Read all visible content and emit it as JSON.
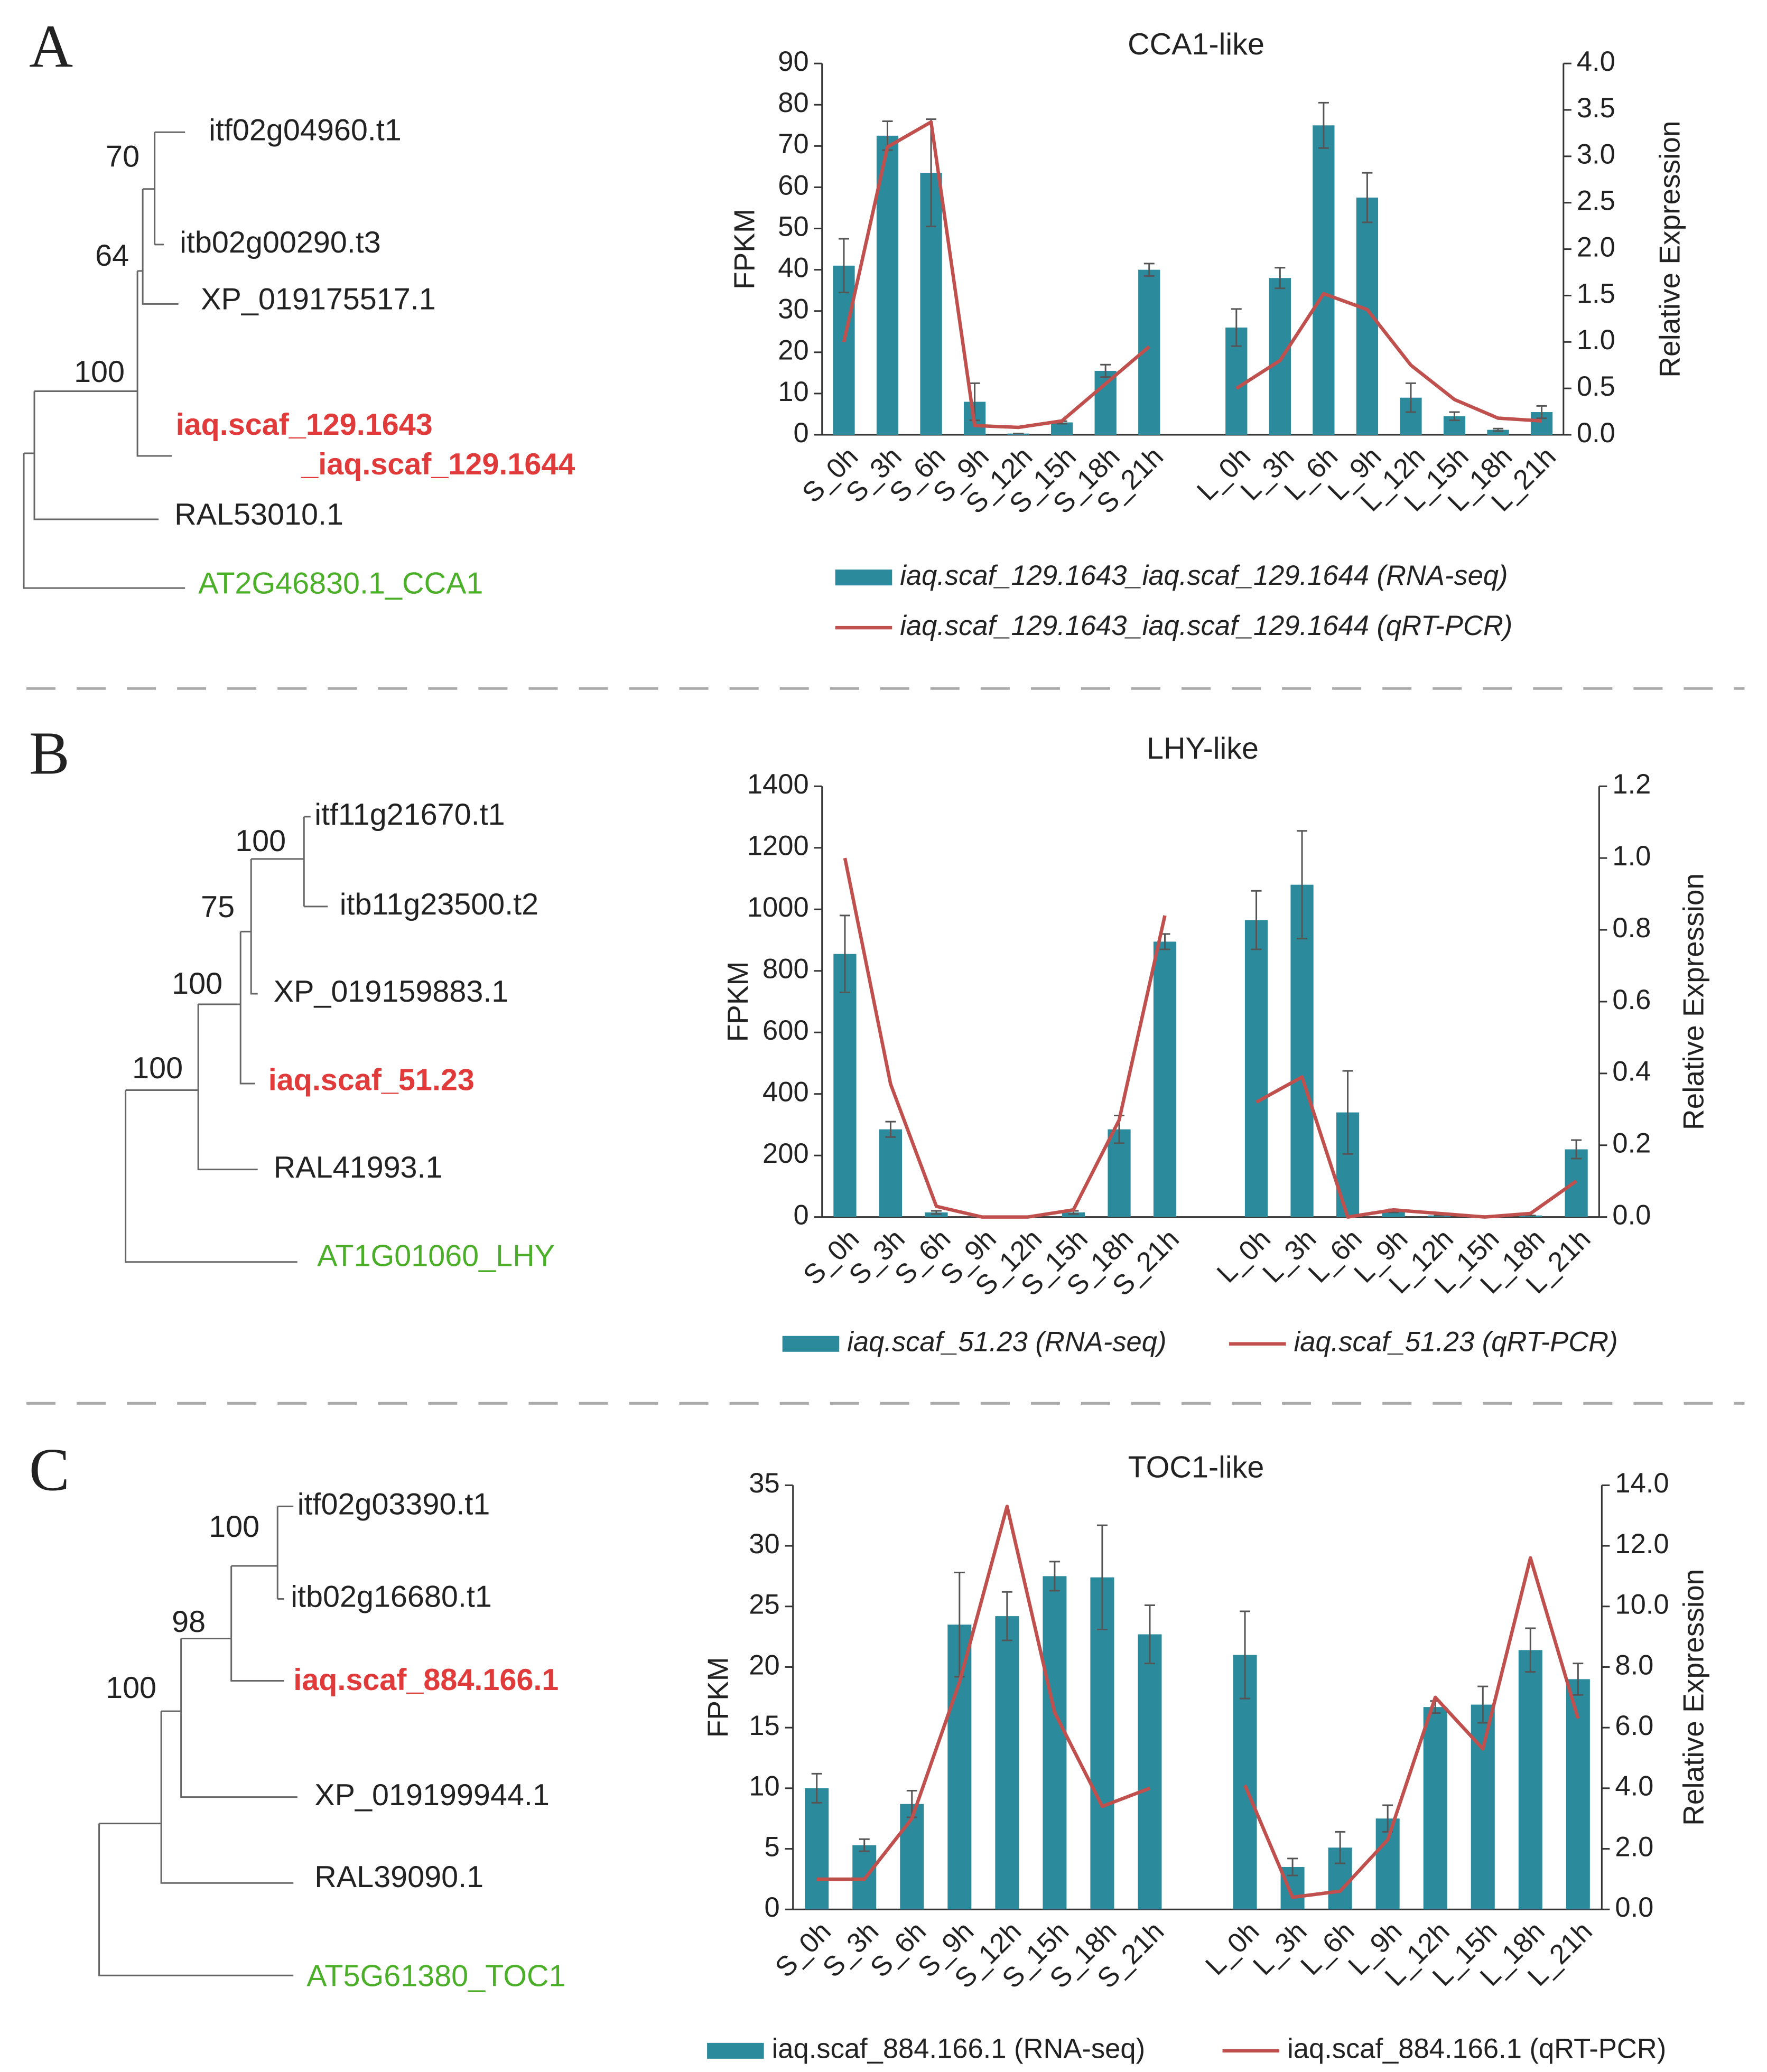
{
  "trees": [
    {
      "label": "A",
      "leaves": [
        "itf02g04960.t1",
        "itb02g00290.t3",
        "XP_019175517.1",
        "iaq.scaf_129.1643",
        "_iaq.scaf_129.1644",
        "RAL53010.1",
        "AT2G46830.1_CCA1"
      ],
      "support": [
        "70",
        "64",
        "100"
      ]
    },
    {
      "label": "B",
      "leaves": [
        "itf11g21670.t1",
        "itb11g23500.t2",
        "XP_019159883.1",
        "iaq.scaf_51.23",
        "RAL41993.1",
        "AT1G01060_LHY"
      ],
      "support": [
        "100",
        "75",
        "100",
        "100"
      ]
    },
    {
      "label": "C",
      "leaves": [
        "itf02g03390.t1",
        "itb02g16680.t1",
        "iaq.scaf_884.166.1",
        "XP_019199944.1",
        "RAL39090.1",
        "AT5G61380_TOC1"
      ],
      "support": [
        "100",
        "98",
        "100"
      ]
    }
  ],
  "chart_data": [
    {
      "type": "bar",
      "title": "CCA1-like",
      "ylabel": "FPKM",
      "y2label": "Relative Expression",
      "categories": [
        "S_0h",
        "S_3h",
        "S_6h",
        "S_9h",
        "S_12h",
        "S_15h",
        "S_18h",
        "S_21h",
        null,
        "L_0h",
        "L_3h",
        "L_6h",
        "L_9h",
        "L_12h",
        "L_15h",
        "L_18h",
        "L_21h"
      ],
      "series": [
        {
          "name": "iaq.scaf_129.1643_iaq.scaf_129.1644  (RNA-seq)",
          "color": "#2b8a9c",
          "values": [
            41,
            72.5,
            63.5,
            8,
            0.3,
            3,
            15.5,
            40,
            null,
            26,
            38,
            75,
            57.5,
            9,
            4.5,
            1.2,
            5.5
          ],
          "errors": [
            6.5,
            3.5,
            13,
            4.5,
            0,
            0.3,
            1.5,
            1.5,
            null,
            4.5,
            2.5,
            5.5,
            6,
            3.5,
            1,
            0.3,
            1.5
          ]
        },
        {
          "name": "iaq.scaf_129.1643_iaq.scaf_129.1644  (qRT-PCR)",
          "color": "#c0504d",
          "axis": "y2",
          "values": [
            1.0,
            3.1,
            3.37,
            0.1,
            0.08,
            0.15,
            0.55,
            0.95,
            null,
            0.5,
            0.8,
            1.52,
            1.35,
            0.75,
            0.38,
            0.18,
            0.15
          ]
        }
      ],
      "ylim": [
        0,
        90
      ],
      "yticks": [
        0,
        10,
        20,
        30,
        40,
        50,
        60,
        70,
        80,
        90
      ],
      "y2lim": [
        0,
        4
      ],
      "y2ticks": [
        {
          "value": 0,
          "label": "0.0"
        },
        0.5,
        {
          "value": 1,
          "label": "1.0"
        },
        1.5,
        {
          "value": 2,
          "label": "2.0"
        },
        2.5,
        {
          "value": 3,
          "label": "3.0"
        },
        3.5,
        {
          "value": 4,
          "label": "4.0"
        }
      ]
    },
    {
      "type": "bar",
      "title": "LHY-like",
      "ylabel": "FPKM",
      "y2label": "Relative Expression",
      "categories": [
        "S_0h",
        "S_3h",
        "S_6h",
        "S_9h",
        "S_12h",
        "S_15h",
        "S_18h",
        "S_21h",
        null,
        "L_0h",
        "L_3h",
        "L_6h",
        "L_9h",
        "L_12h",
        "L_15h",
        "L_18h",
        "L_21h"
      ],
      "series": [
        {
          "name": "iaq.scaf_51.23 (RNA-seq)",
          "color": "#2b8a9c",
          "values": [
            855,
            285,
            15,
            2,
            2,
            15,
            285,
            895,
            null,
            965,
            1080,
            340,
            20,
            5,
            3,
            5,
            220
          ],
          "errors": [
            125,
            25,
            5,
            0,
            0,
            5,
            45,
            25,
            null,
            95,
            175,
            135,
            5,
            0,
            0,
            0,
            30
          ]
        },
        {
          "name": "iaq.scaf_51.23 (qRT-PCR)",
          "color": "#c0504d",
          "axis": "y2",
          "values": [
            1.0,
            0.37,
            0.03,
            0.0,
            0.0,
            0.02,
            0.27,
            0.84,
            null,
            0.32,
            0.39,
            0.0,
            0.02,
            0.01,
            0.0,
            0.01,
            0.1
          ]
        }
      ],
      "ylim": [
        0,
        1400
      ],
      "yticks": [
        0,
        200,
        400,
        600,
        800,
        1000,
        1200,
        1400
      ],
      "y2lim": [
        0,
        1.2
      ],
      "y2ticks": [
        {
          "value": 0,
          "label": "0.0"
        },
        0.2,
        0.4,
        0.6,
        0.8,
        {
          "value": 1,
          "label": "1.0"
        },
        1.2
      ]
    },
    {
      "type": "bar",
      "title": "TOC1-like",
      "ylabel": "FPKM",
      "y2label": "Relative Expression",
      "categories": [
        "S_0h",
        "S_3h",
        "S_6h",
        "S_9h",
        "S_12h",
        "S_15h",
        "S_18h",
        "S_21h",
        null,
        "L_0h",
        "L_3h",
        "L_6h",
        "L_9h",
        "L_12h",
        "L_15h",
        "L_18h",
        "L_21h"
      ],
      "series": [
        {
          "name": "iaq.scaf_884.166.1  (RNA-seq)",
          "color": "#2b8a9c",
          "values": [
            10,
            5.3,
            8.7,
            23.5,
            24.2,
            27.5,
            27.4,
            22.7,
            null,
            21,
            3.5,
            5.1,
            7.5,
            16.7,
            16.9,
            21.4,
            19
          ],
          "errors": [
            1.2,
            0.5,
            1.1,
            4.3,
            2,
            1.2,
            4.3,
            2.4,
            null,
            3.6,
            0.7,
            1.3,
            1.1,
            0.5,
            1.5,
            1.8,
            1.3
          ]
        },
        {
          "name": "iaq.scaf_884.166.1  (qRT-PCR)",
          "color": "#c0504d",
          "axis": "y2",
          "values": [
            1.0,
            1.0,
            3.0,
            7.5,
            13.3,
            6.5,
            3.4,
            4.0,
            null,
            4.1,
            0.4,
            0.6,
            2.3,
            7.0,
            5.3,
            11.6,
            6.3
          ]
        }
      ],
      "ylim": [
        0,
        35
      ],
      "yticks": [
        0,
        5,
        10,
        15,
        20,
        25,
        30,
        35
      ],
      "y2lim": [
        0,
        14
      ],
      "y2ticks": [
        {
          "value": 0,
          "label": "0.0"
        },
        {
          "value": 2,
          "label": "2.0"
        },
        {
          "value": 4,
          "label": "4.0"
        },
        {
          "value": 6,
          "label": "6.0"
        },
        {
          "value": 8,
          "label": "8.0"
        },
        {
          "value": 10,
          "label": "10.0"
        },
        {
          "value": 12,
          "label": "12.0"
        },
        {
          "value": 14,
          "label": "14.0"
        }
      ]
    }
  ]
}
